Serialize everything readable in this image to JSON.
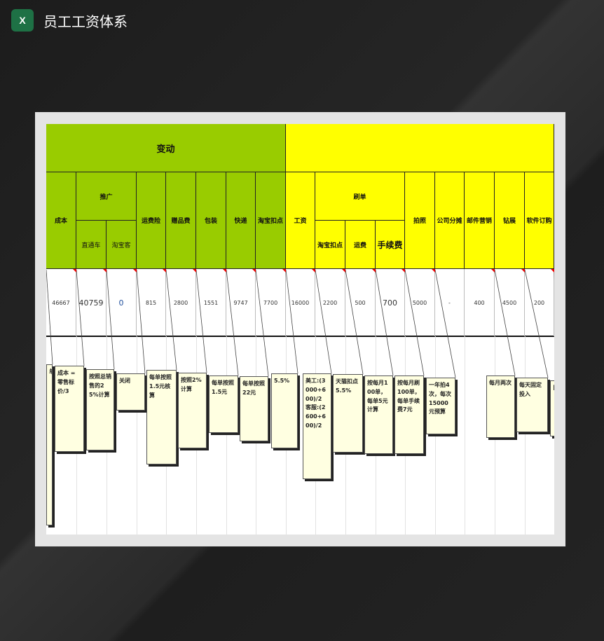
{
  "app": {
    "title": "员工工资体系",
    "icon": "excel-icon"
  },
  "colors": {
    "green": "#99cc00",
    "yellow": "#ffff00",
    "note": "#ffffe1"
  },
  "groups": {
    "variable": "变动"
  },
  "headers": {
    "cost": "成本",
    "promo": "推广",
    "promo_a": "直通车",
    "promo_b": "淘宝客",
    "shipping_ins": "运费险",
    "gift": "赠品费",
    "pack": "包装",
    "express": "快递",
    "taobao_cut": "淘宝扣点",
    "salary": "工资",
    "brush": "刷单",
    "brush_a": "淘宝扣点",
    "brush_b": "运费",
    "brush_c": "手续费",
    "photo": "拍照",
    "share": "公司分摊",
    "email": "邮件营销",
    "drill": "钻展",
    "software": "软件订购"
  },
  "values": [
    "46667",
    "40759",
    "0",
    "815",
    "2800",
    "1551",
    "9747",
    "7700",
    "16000",
    "2200",
    "500",
    "700",
    "5000",
    "-",
    "400",
    "4500",
    "200"
  ],
  "notes": [
    "单",
    "成本 = 零售标价/3",
    "按照总销售的25%计算",
    "关闭",
    "每单按照1.5元核算",
    "按照2% 计算",
    "每单按照1.5元",
    "每单按照22元",
    "5.5%",
    "美工:(3000+600)/2 客服:(2600+600)/2",
    "天猫扣点5.5%",
    "按每月100单，每单5元计算",
    "按每月刷100单，每单手续费7元",
    "一年拍4次，每次15000元预算",
    "每月两次",
    "每天固定投入",
    "目"
  ]
}
